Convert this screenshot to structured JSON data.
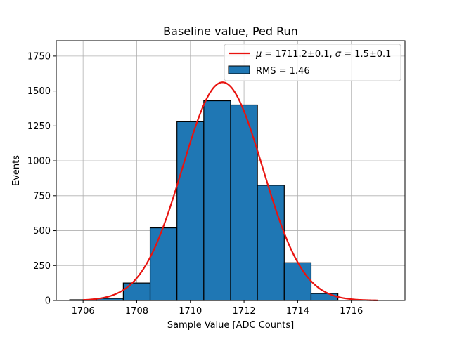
{
  "chart_data": {
    "type": "bar",
    "title": "Baseline value, Ped Run",
    "xlabel": "Sample Value [ADC Counts]",
    "ylabel": "Events",
    "xlim": [
      1705,
      1718
    ],
    "ylim": [
      0,
      1860
    ],
    "xticks": [
      1706,
      1708,
      1710,
      1712,
      1714,
      1716
    ],
    "yticks": [
      0,
      250,
      500,
      750,
      1000,
      1250,
      1500,
      1750
    ],
    "grid": true,
    "legend_position": "top-right",
    "histogram": {
      "name": "RMS = 1.46",
      "color": "#1f77b4",
      "edge_color": "#000000",
      "bin_edges": [
        1705.5,
        1706.5,
        1707.5,
        1708.5,
        1709.5,
        1710.5,
        1711.5,
        1712.5,
        1713.5,
        1714.5,
        1715.5
      ],
      "counts": [
        5,
        15,
        125,
        520,
        1280,
        1430,
        1400,
        825,
        270,
        50
      ]
    },
    "fit": {
      "name": "μ = 1711.2±0.1, σ = 1.5±0.1",
      "label_mu": "μ",
      "label_mu_value": " = 1711.2±0.1, ",
      "label_sigma": "σ",
      "label_sigma_value": " = 1.5±0.1",
      "color": "#e8130f",
      "mu": 1711.2,
      "sigma": 1.5,
      "amplitude": 1562,
      "x_range": [
        1706,
        1717
      ]
    }
  }
}
